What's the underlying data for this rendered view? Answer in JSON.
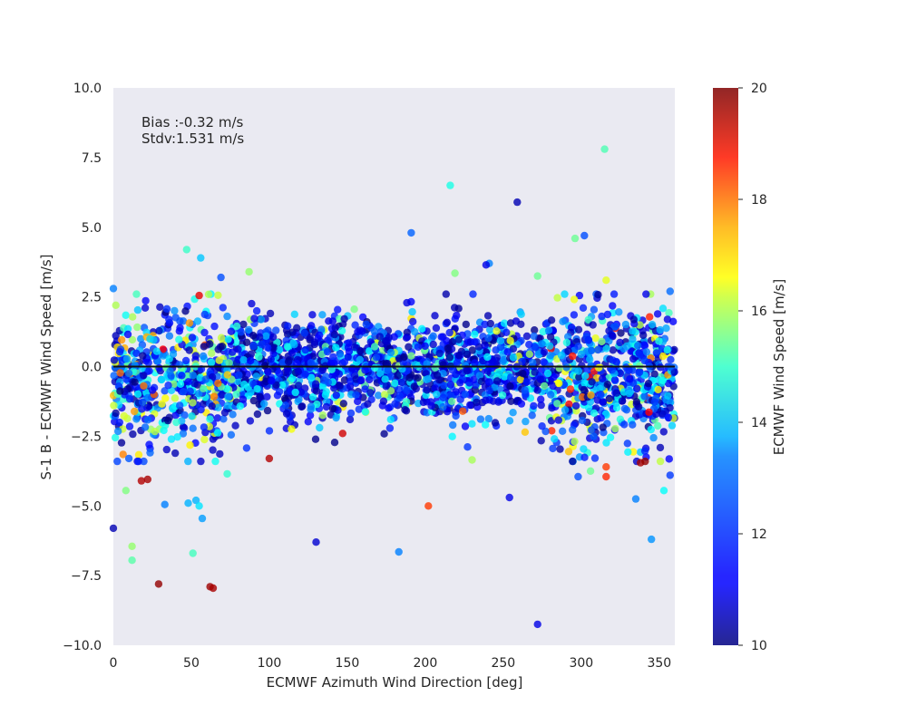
{
  "chart_data": {
    "type": "scatter",
    "xlabel": "ECMWF Azimuth Wind Direction [deg]",
    "ylabel": "S-1 B - ECMWF Wind Speed [m/s]",
    "xlim": [
      0,
      360
    ],
    "ylim": [
      -10,
      10
    ],
    "xticks": [
      0,
      50,
      100,
      150,
      200,
      250,
      300,
      350
    ],
    "yticks": [
      -10.0,
      -7.5,
      -5.0,
      -2.5,
      0.0,
      2.5,
      5.0,
      7.5,
      10.0
    ],
    "grid": false,
    "annotations": [
      "Bias :-0.32 m/s",
      "Stdv:1.531 m/s"
    ],
    "reference_line_y": 0,
    "colorbar": {
      "label": "ECMWF Wind Speed [m/s]",
      "colormap": "jet",
      "range": [
        10,
        20
      ],
      "ticks": [
        10,
        12,
        14,
        16,
        18,
        20
      ]
    },
    "outliers": [
      {
        "x": 315,
        "y": 7.8,
        "c": 14.5
      },
      {
        "x": 216,
        "y": 6.5,
        "c": 14.0
      },
      {
        "x": 259,
        "y": 5.9,
        "c": 10.5
      },
      {
        "x": 191,
        "y": 4.8,
        "c": 12.2
      },
      {
        "x": 302,
        "y": 4.7,
        "c": 12.0
      },
      {
        "x": 296,
        "y": 4.6,
        "c": 14.8
      },
      {
        "x": 47,
        "y": 4.2,
        "c": 14.3
      },
      {
        "x": 56,
        "y": 3.9,
        "c": 13.2
      },
      {
        "x": 241,
        "y": 3.7,
        "c": 12.5
      },
      {
        "x": 239,
        "y": 3.65,
        "c": 11.0
      },
      {
        "x": 87,
        "y": 3.4,
        "c": 15.2
      },
      {
        "x": 219,
        "y": 3.35,
        "c": 15.0
      },
      {
        "x": 69,
        "y": 3.2,
        "c": 12.0
      },
      {
        "x": 0,
        "y": 2.8,
        "c": 12.5
      },
      {
        "x": 100,
        "y": -3.3,
        "c": 19.5
      },
      {
        "x": 202,
        "y": -5.0,
        "c": 18.2
      },
      {
        "x": 53,
        "y": -4.8,
        "c": 13.0
      },
      {
        "x": 55,
        "y": -5.0,
        "c": 13.5
      },
      {
        "x": 57,
        "y": -5.45,
        "c": 12.8
      },
      {
        "x": 0,
        "y": -5.8,
        "c": 10.5
      },
      {
        "x": 12,
        "y": -6.45,
        "c": 15.2
      },
      {
        "x": 12,
        "y": -6.95,
        "c": 14.6
      },
      {
        "x": 51,
        "y": -6.7,
        "c": 14.4
      },
      {
        "x": 130,
        "y": -6.3,
        "c": 10.8
      },
      {
        "x": 183,
        "y": -6.65,
        "c": 12.5
      },
      {
        "x": 345,
        "y": -6.2,
        "c": 12.7
      },
      {
        "x": 29,
        "y": -7.8,
        "c": 19.8
      },
      {
        "x": 62,
        "y": -7.9,
        "c": 19.7
      },
      {
        "x": 64,
        "y": -7.95,
        "c": 19.6
      },
      {
        "x": 272,
        "y": -9.25,
        "c": 11.0
      },
      {
        "x": 254,
        "y": -4.7,
        "c": 11.0
      },
      {
        "x": 335,
        "y": -4.75,
        "c": 12.5
      },
      {
        "x": 353,
        "y": -4.45,
        "c": 13.8
      },
      {
        "x": 8,
        "y": -4.45,
        "c": 15.0
      },
      {
        "x": 33,
        "y": -4.95,
        "c": 12.5
      },
      {
        "x": 48,
        "y": -4.9,
        "c": 13.0
      },
      {
        "x": 230,
        "y": -3.35,
        "c": 15.4
      },
      {
        "x": 264,
        "y": -2.35,
        "c": 16.8
      },
      {
        "x": 316,
        "y": -3.6,
        "c": 18.2
      },
      {
        "x": 316,
        "y": -3.95,
        "c": 18.4
      },
      {
        "x": 306,
        "y": -3.75,
        "c": 14.8
      },
      {
        "x": 298,
        "y": -3.95,
        "c": 12.0
      },
      {
        "x": 357,
        "y": -3.9,
        "c": 11.8
      },
      {
        "x": 338,
        "y": -3.45,
        "c": 19.6
      },
      {
        "x": 341,
        "y": -3.4,
        "c": 19.8
      },
      {
        "x": 18,
        "y": -4.1,
        "c": 19.5
      },
      {
        "x": 22,
        "y": -4.05,
        "c": 19.6
      },
      {
        "x": 73,
        "y": -3.85,
        "c": 14.2
      },
      {
        "x": 55,
        "y": 2.55,
        "c": 19.0
      },
      {
        "x": 272,
        "y": 3.25,
        "c": 14.8
      },
      {
        "x": 316,
        "y": 3.1,
        "c": 16.0
      },
      {
        "x": 147,
        "y": -2.4,
        "c": 19.2
      },
      {
        "x": 224,
        "y": -1.6,
        "c": 17.9
      },
      {
        "x": 357,
        "y": 2.7,
        "c": 12.3
      }
    ],
    "cloud_summary": "Dense band of about 2500 points spanning 0-360 deg, mostly between -3 and +2.5 m/s, with wider spread near 0-70 deg and 280-360 deg; colors mostly 10-14 m/s"
  }
}
